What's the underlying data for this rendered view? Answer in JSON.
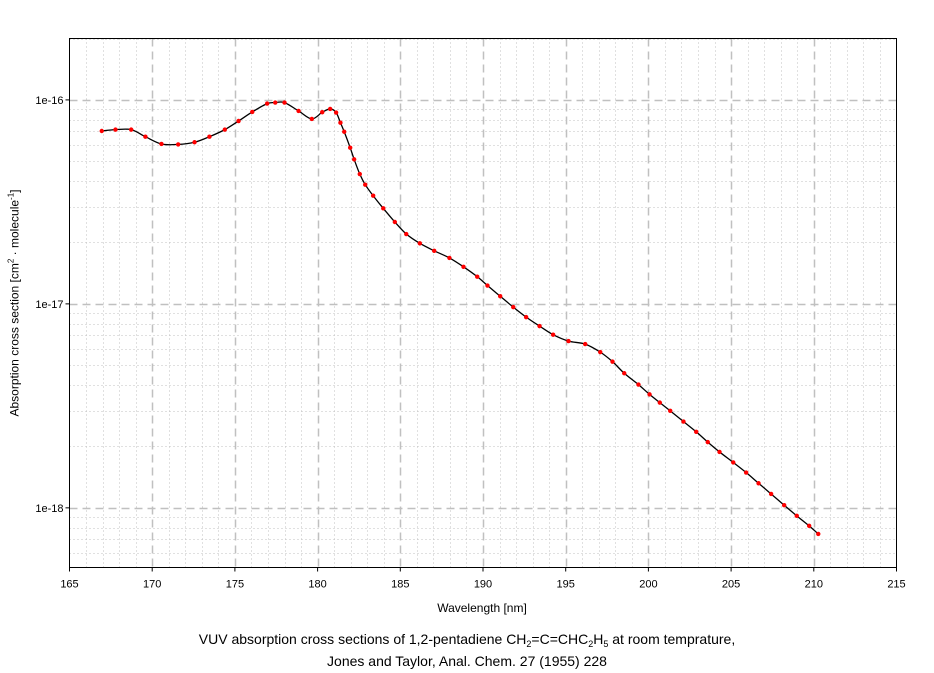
{
  "chart_data": {
    "type": "line",
    "title": "",
    "xlabel": "Wavelength [nm]",
    "ylabel": {
      "prefix": "Absorption cross section [cm",
      "sup1": "2",
      "middle": " · molecule",
      "sup2": "-1",
      "suffix": "]"
    },
    "xlim": [
      165,
      215
    ],
    "ylim": [
      5.1e-19,
      2e-16
    ],
    "yscale": "log",
    "xticks": [
      165,
      170,
      175,
      180,
      185,
      190,
      195,
      200,
      205,
      210,
      215
    ],
    "yticks": [
      {
        "value": 1e-16,
        "label": "1e-16"
      },
      {
        "value": 1e-17,
        "label": "1e-17"
      },
      {
        "value": 1e-18,
        "label": "1e-18"
      }
    ],
    "grid": true,
    "line_color": "#000000",
    "marker_color": "#ff0000",
    "series": [
      {
        "name": "1,2-pentadiene",
        "x": [
          166.95,
          167.78,
          168.73,
          169.59,
          170.56,
          171.57,
          172.56,
          173.46,
          174.39,
          175.22,
          176.05,
          176.95,
          177.44,
          178.0,
          178.85,
          179.65,
          180.28,
          180.76,
          181.12,
          181.38,
          181.61,
          181.97,
          182.21,
          182.55,
          182.88,
          183.36,
          183.97,
          184.67,
          185.36,
          186.18,
          187.05,
          187.97,
          188.82,
          189.65,
          190.27,
          191.04,
          191.83,
          192.61,
          193.42,
          194.24,
          195.17,
          196.18,
          197.09,
          197.83,
          198.54,
          199.4,
          200.07,
          200.69,
          201.32,
          202.12,
          202.89,
          203.59,
          204.3,
          205.13,
          205.91,
          206.66,
          207.42,
          208.21,
          208.97,
          209.72,
          210.27
        ],
        "y": [
          7.04e-17,
          7.15e-17,
          7.15e-17,
          6.6e-17,
          6.08e-17,
          6.05e-17,
          6.2e-17,
          6.6e-17,
          7.15e-17,
          7.88e-17,
          8.73e-17,
          9.59e-17,
          9.7e-17,
          9.7e-17,
          8.83e-17,
          8.07e-17,
          8.7e-17,
          9.03e-17,
          8.67e-17,
          7.73e-17,
          6.98e-17,
          5.83e-17,
          5.11e-17,
          4.33e-17,
          3.84e-17,
          3.39e-17,
          2.94e-17,
          2.52e-17,
          2.2e-17,
          1.98e-17,
          1.82e-17,
          1.68e-17,
          1.52e-17,
          1.36e-17,
          1.23e-17,
          1.09e-17,
          9.64e-18,
          8.61e-18,
          7.78e-18,
          7.06e-18,
          6.57e-18,
          6.35e-18,
          5.8e-18,
          5.21e-18,
          4.57e-18,
          4.02e-18,
          3.6e-18,
          3.28e-18,
          2.99e-18,
          2.65e-18,
          2.36e-18,
          2.1e-18,
          1.88e-18,
          1.67e-18,
          1.49e-18,
          1.32e-18,
          1.17e-18,
          1.03e-18,
          9.14e-19,
          8.16e-19,
          7.45e-19
        ]
      }
    ],
    "caption": {
      "line1_prefix": "VUV absorption cross sections of 1,2-pentadiene CH",
      "sub1": "2",
      "mid": "=C=CHC",
      "sub2": "2",
      "mid2": "H",
      "sub3": "5",
      "line1_suffix": " at room temprature,",
      "line2": "Jones and Taylor, Anal. Chem. 27 (1955) 228"
    }
  }
}
